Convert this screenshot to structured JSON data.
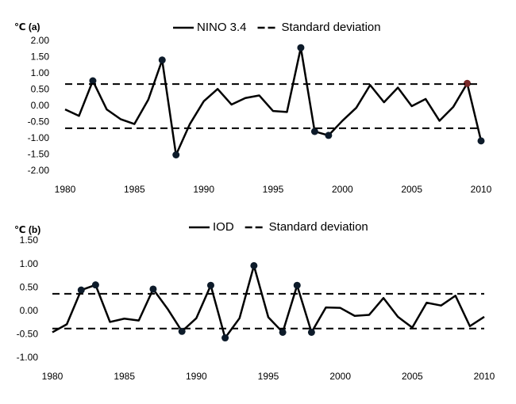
{
  "chart_data": [
    {
      "type": "line",
      "annotation": "℃ (a)",
      "x": [
        1980,
        1981,
        1982,
        1983,
        1984,
        1985,
        1986,
        1987,
        1988,
        1989,
        1990,
        1991,
        1992,
        1993,
        1994,
        1995,
        1996,
        1997,
        1998,
        1999,
        2000,
        2001,
        2002,
        2003,
        2004,
        2005,
        2006,
        2007,
        2008,
        2009,
        2010
      ],
      "series": [
        {
          "name": "NINO 3.4",
          "color": "#000000",
          "values": [
            -0.1,
            -0.3,
            0.78,
            -0.1,
            -0.4,
            -0.55,
            0.2,
            1.42,
            -1.5,
            -0.55,
            0.15,
            0.53,
            0.05,
            0.25,
            0.33,
            -0.15,
            -0.18,
            1.8,
            -0.78,
            -0.9,
            -0.45,
            -0.05,
            0.65,
            0.12,
            0.57,
            0,
            0.22,
            -0.45,
            -0.02,
            0.7,
            -1.07
          ],
          "marker_colors": [
            null,
            null,
            "#0d1b2a",
            null,
            null,
            null,
            null,
            "#0d1b2a",
            "#0d1b2a",
            null,
            null,
            null,
            null,
            null,
            null,
            null,
            null,
            "#0d1b2a",
            "#0d1b2a",
            "#0d1b2a",
            null,
            null,
            null,
            null,
            null,
            null,
            null,
            null,
            null,
            "#7a2a2a",
            "#0d1b2a"
          ]
        },
        {
          "name": "Standard deviation",
          "color": "#000000",
          "dashed": true,
          "levels": [
            0.68,
            -0.68
          ]
        }
      ],
      "xlim": [
        1980,
        2010
      ],
      "xticks": [
        1980,
        1985,
        1990,
        1995,
        2000,
        2005,
        2010
      ],
      "ylim": [
        -2,
        2
      ],
      "yticks": [
        {
          "value": 2,
          "label": "2.00"
        },
        {
          "value": 1.5,
          "label": "1.50"
        },
        {
          "value": 1,
          "label": "1.00"
        },
        {
          "value": 0.5,
          "label": "0.50"
        },
        {
          "value": 0,
          "label": "0.00"
        },
        {
          "value": -0.5,
          "label": "-0.50"
        },
        {
          "value": -1,
          "label": "-1.00"
        },
        {
          "value": -1.5,
          "label": "-1.50"
        },
        {
          "value": -2,
          "label": "-2.00"
        }
      ]
    },
    {
      "type": "line",
      "annotation": "℃ (b)",
      "x": [
        1980,
        1981,
        1982,
        1983,
        1984,
        1985,
        1986,
        1987,
        1988,
        1989,
        1990,
        1991,
        1992,
        1993,
        1994,
        1995,
        1996,
        1997,
        1998,
        1999,
        2000,
        2001,
        2002,
        2003,
        2004,
        2005,
        2006,
        2007,
        2008,
        2009,
        2010
      ],
      "series": [
        {
          "name": "IOD",
          "color": "#000000",
          "values": [
            -0.45,
            -0.28,
            0.45,
            0.56,
            -0.23,
            -0.16,
            -0.2,
            0.47,
            0.05,
            -0.43,
            -0.15,
            0.55,
            -0.57,
            -0.15,
            0.97,
            -0.13,
            -0.45,
            0.55,
            -0.45,
            0.08,
            0.07,
            -0.1,
            -0.08,
            0.28,
            -0.12,
            -0.35,
            0.18,
            0.12,
            0.33,
            -0.32,
            -0.12
          ],
          "marker_colors": [
            null,
            null,
            "#0d1b2a",
            "#0d1b2a",
            null,
            null,
            null,
            "#0d1b2a",
            null,
            "#0d1b2a",
            null,
            "#0d1b2a",
            "#0d1b2a",
            null,
            "#0d1b2a",
            null,
            "#0d1b2a",
            "#0d1b2a",
            "#0d1b2a",
            null,
            null,
            null,
            null,
            null,
            null,
            null,
            null,
            null,
            null,
            null,
            null
          ]
        },
        {
          "name": "Standard deviation",
          "color": "#000000",
          "dashed": true,
          "levels": [
            0.37,
            -0.37
          ]
        }
      ],
      "xlim": [
        1980,
        2010
      ],
      "xticks": [
        1980,
        1985,
        1990,
        1995,
        2000,
        2005,
        2010
      ],
      "ylim": [
        -1,
        1.5
      ],
      "yticks": [
        {
          "value": 1.5,
          "label": "1.50"
        },
        {
          "value": 1,
          "label": "1.00"
        },
        {
          "value": 0.5,
          "label": "0.50"
        },
        {
          "value": 0,
          "label": "0.00"
        },
        {
          "value": -0.5,
          "label": "-0.50"
        },
        {
          "value": -1,
          "label": "-1.00"
        }
      ]
    }
  ]
}
